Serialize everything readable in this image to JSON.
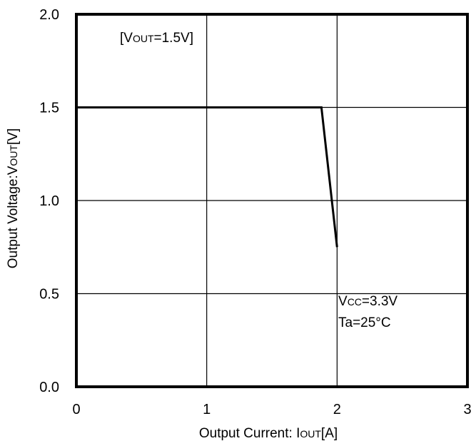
{
  "chart_data": {
    "type": "line",
    "xlabel": {
      "main": "Output Current: I",
      "sub": "OUT",
      "unit": "[A]"
    },
    "ylabel": {
      "main": "Output Voltage:V",
      "sub": "OUT",
      "unit": "[V]"
    },
    "xlim": [
      0,
      3
    ],
    "ylim": [
      0,
      2.0
    ],
    "x_ticks": [
      0,
      1,
      2,
      3
    ],
    "x_tick_labels": [
      "0",
      "1",
      "2",
      "3"
    ],
    "y_ticks": [
      0,
      0.5,
      1.0,
      1.5,
      2.0
    ],
    "y_tick_labels": [
      "0.0",
      "0.5",
      "1.0",
      "1.5",
      "2.0"
    ],
    "grid": true,
    "series": [
      {
        "x": [
          0,
          1.88,
          2.0
        ],
        "y": [
          1.5,
          1.5,
          0.75
        ]
      }
    ],
    "annotations": {
      "vout": {
        "open": "[V",
        "sub": "OUT",
        "close": "=1.5V]"
      },
      "vcc": {
        "main": "V",
        "sub": "CC",
        "value": "=3.3V"
      },
      "ta": "Ta=25°C"
    },
    "line_color": "#000000"
  }
}
